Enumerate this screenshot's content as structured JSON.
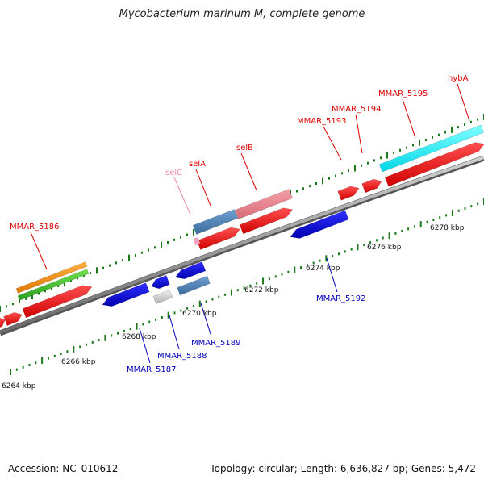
{
  "title": "Mycobacterium marinum M, complete genome",
  "footer": {
    "accession": "Accession: NC_010612",
    "summary": "Topology: circular; Length: 6,636,827 bp; Genes: 5,472"
  },
  "colors": {
    "backbone": "#8c8c8c",
    "tick": "#1a7a1a",
    "label_forward": "#dd0000",
    "label_reverse": "#0000bb",
    "label_selC": "#ee88aa"
  },
  "kbp_labels": [
    "6264 kbp",
    "6266 kbp",
    "6268 kbp",
    "6270 kbp",
    "6272 kbp",
    "6274 kbp",
    "6276 kbp",
    "6278 kbp"
  ],
  "genes_forward": [
    "MMAR_5186",
    "selC",
    "selA",
    "selB",
    "MMAR_5193",
    "MMAR_5194",
    "MMAR_5195",
    "hybA"
  ],
  "genes_reverse": [
    "MMAR_5187",
    "MMAR_5188",
    "MMAR_5189",
    "MMAR_5192"
  ]
}
